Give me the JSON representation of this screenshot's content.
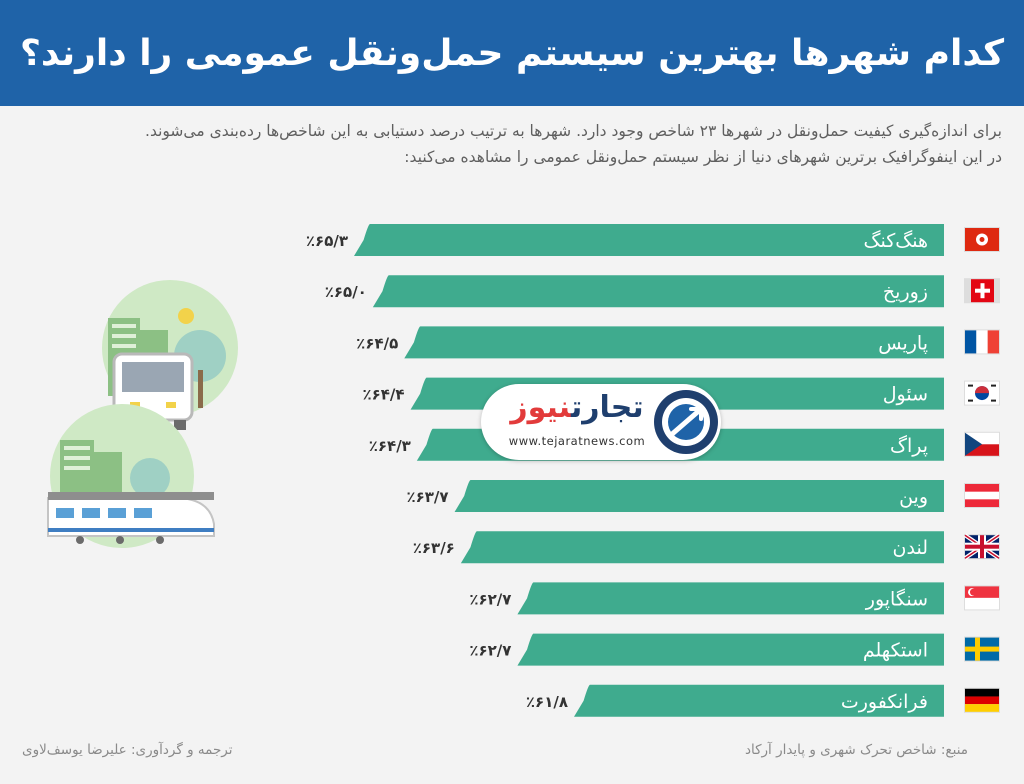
{
  "header": {
    "title": "کدام شهرها بهترین سیستم حمل‌ونقل عمومی را دارند؟"
  },
  "intro": {
    "line1": "برای اندازه‌گیری کیفیت حمل‌ونقل در شهرها ۲۳ شاخص وجود دارد. شهرها به ترتیب درصد دستیابی به این شاخص‌ها رده‌بندی می‌شوند.",
    "line2": "در این اینفوگرافیک برترین شهرهای دنیا از نظر سیستم حمل‌ونقل عمومی را مشاهده می‌کنید:"
  },
  "colors": {
    "header_bg": "#1f63a8",
    "bar": "#3fab8e",
    "background": "#f3f3f3"
  },
  "chart_data": {
    "type": "bar",
    "orientation": "horizontal",
    "categories": [
      "هنگ‌کنگ",
      "زوریخ",
      "پاریس",
      "سئول",
      "پراگ",
      "وین",
      "لندن",
      "سنگاپور",
      "استکهلم",
      "فرانکفورت"
    ],
    "values": [
      65.3,
      65.0,
      64.5,
      64.4,
      64.3,
      63.7,
      63.6,
      62.7,
      62.7,
      61.8
    ],
    "value_labels": [
      "٪۶۵/۳",
      "٪۶۵/۰",
      "٪۶۴/۵",
      "٪۶۴/۴",
      "٪۶۴/۳",
      "٪۶۳/۷",
      "٪۶۳/۶",
      "٪۶۲/۷",
      "٪۶۲/۷",
      "٪۶۱/۸"
    ],
    "flags": [
      "hong-kong-flag-icon",
      "switzerland-flag-icon",
      "france-flag-icon",
      "south-korea-flag-icon",
      "czech-flag-icon",
      "austria-flag-icon",
      "uk-flag-icon",
      "singapore-flag-icon",
      "sweden-flag-icon",
      "germany-flag-icon"
    ],
    "xlim": [
      0,
      65.3
    ],
    "title": "",
    "xlabel": "",
    "ylabel": ""
  },
  "watermark": {
    "brand_main": "تجارت",
    "brand_accent": "نیوز",
    "url": "www.tejaratnews.com"
  },
  "footer": {
    "source": "منبع: شاخص تحرک شهری و پایدار آرکاد",
    "credit": "ترجمه و گردآوری: علیرضا یوسف‌لاوی"
  }
}
